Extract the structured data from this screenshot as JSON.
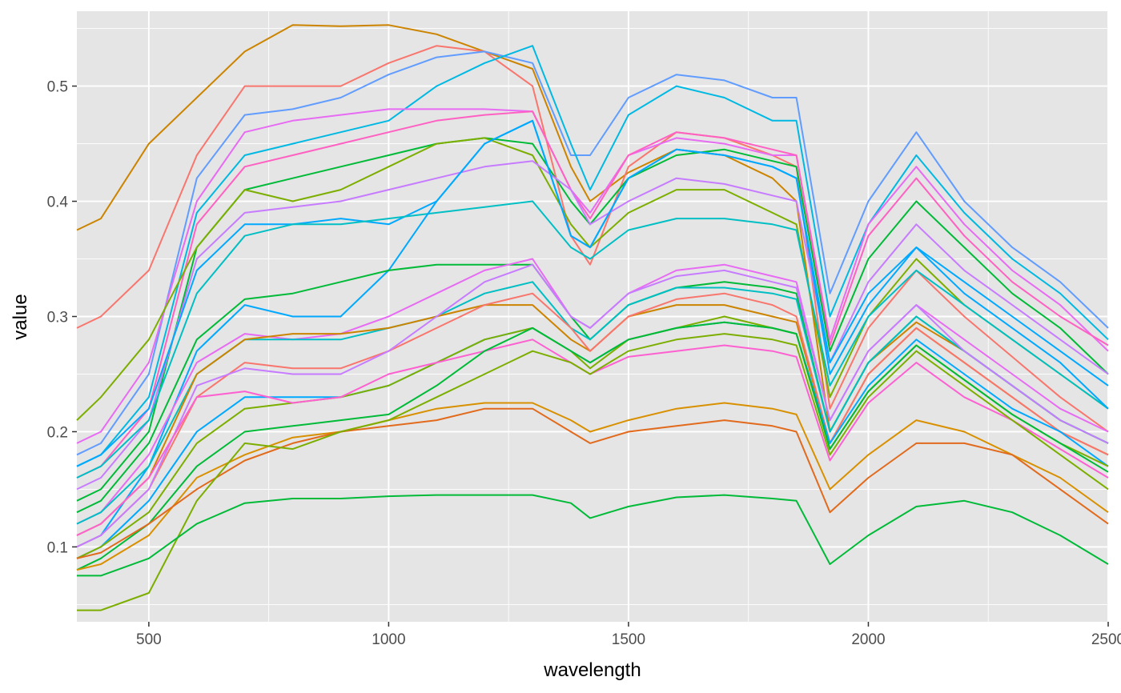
{
  "chart_data": {
    "type": "line",
    "title": "",
    "xlabel": "wavelength",
    "ylabel": "value",
    "xlim": [
      350,
      2500
    ],
    "ylim": [
      0.035,
      0.565
    ],
    "x_ticks": [
      500,
      1000,
      1500,
      2000,
      2500
    ],
    "x_tick_labels": [
      "500",
      "1000",
      "1500",
      "2000",
      "2500"
    ],
    "y_ticks": [
      0.1,
      0.2,
      0.3,
      0.4,
      0.5
    ],
    "y_tick_labels": [
      "0.1",
      "0.2",
      "0.3",
      "0.4",
      "0.5"
    ],
    "grid": true,
    "legend": "none",
    "panel_background": "#e5e5e5",
    "grid_color": "#ffffff",
    "x_key": [
      350,
      400,
      500,
      600,
      700,
      800,
      900,
      1000,
      1100,
      1200,
      1300,
      1380,
      1420,
      1500,
      1600,
      1700,
      1800,
      1850,
      1920,
      2000,
      2100,
      2200,
      2300,
      2400,
      2500
    ],
    "series": [
      {
        "color": "#cc8400",
        "values": [
          0.375,
          0.385,
          0.45,
          0.49,
          0.53,
          0.553,
          0.552,
          0.553,
          0.545,
          0.53,
          0.515,
          0.43,
          0.4,
          0.425,
          0.445,
          0.44,
          0.42,
          0.4,
          0.2,
          0.26,
          0.295,
          0.27,
          0.24,
          0.21,
          0.19
        ]
      },
      {
        "color": "#f8766d",
        "values": [
          0.29,
          0.3,
          0.34,
          0.44,
          0.5,
          0.5,
          0.5,
          0.52,
          0.535,
          0.53,
          0.5,
          0.37,
          0.345,
          0.43,
          0.46,
          0.455,
          0.44,
          0.43,
          0.22,
          0.29,
          0.34,
          0.3,
          0.265,
          0.23,
          0.2
        ]
      },
      {
        "color": "#619cff",
        "values": [
          0.18,
          0.19,
          0.25,
          0.42,
          0.475,
          0.48,
          0.49,
          0.51,
          0.525,
          0.53,
          0.52,
          0.44,
          0.44,
          0.49,
          0.51,
          0.505,
          0.49,
          0.49,
          0.32,
          0.4,
          0.46,
          0.4,
          0.36,
          0.33,
          0.29
        ]
      },
      {
        "color": "#00b9e3",
        "values": [
          0.17,
          0.18,
          0.23,
          0.39,
          0.44,
          0.45,
          0.46,
          0.47,
          0.5,
          0.52,
          0.535,
          0.45,
          0.41,
          0.475,
          0.5,
          0.49,
          0.47,
          0.47,
          0.3,
          0.38,
          0.44,
          0.39,
          0.35,
          0.32,
          0.28
        ]
      },
      {
        "color": "#e76bf3",
        "values": [
          0.19,
          0.2,
          0.26,
          0.4,
          0.46,
          0.47,
          0.475,
          0.48,
          0.48,
          0.48,
          0.478,
          0.41,
          0.39,
          0.44,
          0.455,
          0.45,
          0.44,
          0.44,
          0.28,
          0.38,
          0.43,
          0.38,
          0.34,
          0.31,
          0.27
        ]
      },
      {
        "color": "#ff61c3",
        "values": [
          0.16,
          0.17,
          0.22,
          0.38,
          0.43,
          0.44,
          0.45,
          0.46,
          0.47,
          0.475,
          0.478,
          0.41,
          0.385,
          0.44,
          0.46,
          0.455,
          0.445,
          0.44,
          0.275,
          0.37,
          0.42,
          0.37,
          0.33,
          0.3,
          0.275
        ]
      },
      {
        "color": "#00ba38",
        "values": [
          0.14,
          0.15,
          0.2,
          0.36,
          0.41,
          0.42,
          0.43,
          0.44,
          0.45,
          0.455,
          0.45,
          0.4,
          0.38,
          0.42,
          0.44,
          0.445,
          0.435,
          0.43,
          0.27,
          0.35,
          0.4,
          0.36,
          0.32,
          0.29,
          0.25
        ]
      },
      {
        "color": "#7cae00",
        "values": [
          0.21,
          0.23,
          0.28,
          0.36,
          0.41,
          0.4,
          0.41,
          0.43,
          0.45,
          0.455,
          0.44,
          0.38,
          0.36,
          0.39,
          0.41,
          0.41,
          0.39,
          0.38,
          0.23,
          0.3,
          0.35,
          0.31,
          0.28,
          0.25,
          0.22
        ]
      },
      {
        "color": "#c77cff",
        "values": [
          0.15,
          0.16,
          0.21,
          0.35,
          0.39,
          0.395,
          0.4,
          0.41,
          0.42,
          0.43,
          0.435,
          0.41,
          0.38,
          0.4,
          0.42,
          0.415,
          0.405,
          0.4,
          0.26,
          0.33,
          0.38,
          0.34,
          0.31,
          0.28,
          0.25
        ]
      },
      {
        "color": "#00a9ff",
        "values": [
          0.17,
          0.18,
          0.22,
          0.34,
          0.38,
          0.38,
          0.385,
          0.38,
          0.4,
          0.45,
          0.47,
          0.37,
          0.36,
          0.42,
          0.445,
          0.44,
          0.43,
          0.42,
          0.26,
          0.32,
          0.36,
          0.33,
          0.3,
          0.27,
          0.24
        ]
      },
      {
        "color": "#00bfc4",
        "values": [
          0.16,
          0.17,
          0.21,
          0.32,
          0.37,
          0.38,
          0.38,
          0.385,
          0.39,
          0.395,
          0.4,
          0.36,
          0.35,
          0.375,
          0.385,
          0.385,
          0.38,
          0.375,
          0.24,
          0.3,
          0.34,
          0.31,
          0.28,
          0.25,
          0.22
        ]
      },
      {
        "color": "#00a9ff",
        "values": [
          0.1,
          0.11,
          0.17,
          0.27,
          0.31,
          0.3,
          0.3,
          0.34,
          0.4,
          0.45,
          0.47,
          0.37,
          0.36,
          0.42,
          0.445,
          0.44,
          0.43,
          0.42,
          0.25,
          0.31,
          0.36,
          0.32,
          0.29,
          0.26,
          0.22
        ]
      },
      {
        "color": "#00ba38",
        "values": [
          0.13,
          0.14,
          0.19,
          0.28,
          0.315,
          0.32,
          0.33,
          0.34,
          0.345,
          0.345,
          0.345,
          0.3,
          0.28,
          0.31,
          0.325,
          0.33,
          0.325,
          0.32,
          0.2,
          0.26,
          0.3,
          0.27,
          0.24,
          0.21,
          0.19
        ]
      },
      {
        "color": "#e76bf3",
        "values": [
          0.12,
          0.13,
          0.18,
          0.26,
          0.285,
          0.28,
          0.285,
          0.3,
          0.32,
          0.34,
          0.35,
          0.3,
          0.29,
          0.32,
          0.34,
          0.345,
          0.335,
          0.33,
          0.21,
          0.27,
          0.31,
          0.28,
          0.25,
          0.22,
          0.2
        ]
      },
      {
        "color": "#00bfc4",
        "values": [
          0.12,
          0.13,
          0.17,
          0.25,
          0.28,
          0.28,
          0.28,
          0.29,
          0.3,
          0.32,
          0.33,
          0.29,
          0.28,
          0.31,
          0.325,
          0.325,
          0.32,
          0.315,
          0.2,
          0.26,
          0.3,
          0.27,
          0.24,
          0.21,
          0.19
        ]
      },
      {
        "color": "#cc8400",
        "values": [
          0.11,
          0.12,
          0.16,
          0.25,
          0.28,
          0.285,
          0.285,
          0.29,
          0.3,
          0.31,
          0.31,
          0.28,
          0.27,
          0.3,
          0.31,
          0.31,
          0.3,
          0.295,
          0.19,
          0.25,
          0.29,
          0.26,
          0.23,
          0.2,
          0.18
        ]
      },
      {
        "color": "#f8766d",
        "values": [
          0.1,
          0.11,
          0.15,
          0.23,
          0.26,
          0.255,
          0.255,
          0.27,
          0.29,
          0.31,
          0.32,
          0.29,
          0.27,
          0.3,
          0.315,
          0.32,
          0.31,
          0.3,
          0.19,
          0.25,
          0.29,
          0.26,
          0.23,
          0.2,
          0.18
        ]
      },
      {
        "color": "#c77cff",
        "values": [
          0.1,
          0.11,
          0.15,
          0.24,
          0.255,
          0.25,
          0.25,
          0.27,
          0.3,
          0.33,
          0.345,
          0.3,
          0.29,
          0.32,
          0.335,
          0.34,
          0.33,
          0.325,
          0.21,
          0.27,
          0.31,
          0.27,
          0.24,
          0.21,
          0.19
        ]
      },
      {
        "color": "#00a9ff",
        "values": [
          0.09,
          0.1,
          0.14,
          0.2,
          0.23,
          0.23,
          0.23,
          0.24,
          0.26,
          0.28,
          0.29,
          0.27,
          0.26,
          0.28,
          0.29,
          0.295,
          0.29,
          0.285,
          0.19,
          0.24,
          0.28,
          0.25,
          0.22,
          0.2,
          0.17
        ]
      },
      {
        "color": "#7cae00",
        "values": [
          0.09,
          0.1,
          0.13,
          0.19,
          0.22,
          0.225,
          0.23,
          0.24,
          0.26,
          0.28,
          0.29,
          0.27,
          0.255,
          0.28,
          0.29,
          0.3,
          0.29,
          0.285,
          0.185,
          0.235,
          0.275,
          0.245,
          0.215,
          0.19,
          0.17
        ]
      },
      {
        "color": "#fd61d1",
        "values": [
          0.11,
          0.12,
          0.16,
          0.23,
          0.235,
          0.225,
          0.23,
          0.25,
          0.26,
          0.27,
          0.28,
          0.26,
          0.25,
          0.265,
          0.27,
          0.275,
          0.27,
          0.265,
          0.175,
          0.225,
          0.26,
          0.23,
          0.21,
          0.185,
          0.16
        ]
      },
      {
        "color": "#00ba38",
        "values": [
          0.08,
          0.09,
          0.12,
          0.17,
          0.2,
          0.205,
          0.21,
          0.215,
          0.24,
          0.27,
          0.29,
          0.27,
          0.26,
          0.28,
          0.29,
          0.295,
          0.29,
          0.285,
          0.185,
          0.235,
          0.275,
          0.245,
          0.215,
          0.19,
          0.165
        ]
      },
      {
        "color": "#d89000",
        "values": [
          0.08,
          0.085,
          0.11,
          0.16,
          0.18,
          0.195,
          0.2,
          0.21,
          0.22,
          0.225,
          0.225,
          0.21,
          0.2,
          0.21,
          0.22,
          0.225,
          0.22,
          0.215,
          0.15,
          0.18,
          0.21,
          0.2,
          0.18,
          0.16,
          0.13
        ]
      },
      {
        "color": "#e16a1c",
        "values": [
          0.09,
          0.095,
          0.12,
          0.15,
          0.175,
          0.19,
          0.2,
          0.205,
          0.21,
          0.22,
          0.22,
          0.2,
          0.19,
          0.2,
          0.205,
          0.21,
          0.205,
          0.2,
          0.13,
          0.16,
          0.19,
          0.19,
          0.18,
          0.15,
          0.12
        ]
      },
      {
        "color": "#7cae00",
        "values": [
          0.045,
          0.045,
          0.06,
          0.14,
          0.19,
          0.185,
          0.2,
          0.21,
          0.23,
          0.25,
          0.27,
          0.26,
          0.25,
          0.27,
          0.28,
          0.285,
          0.28,
          0.275,
          0.18,
          0.23,
          0.27,
          0.24,
          0.21,
          0.18,
          0.15
        ]
      },
      {
        "color": "#00ba38",
        "values": [
          0.075,
          0.075,
          0.09,
          0.12,
          0.138,
          0.142,
          0.142,
          0.144,
          0.145,
          0.145,
          0.145,
          0.138,
          0.125,
          0.135,
          0.143,
          0.145,
          0.142,
          0.14,
          0.085,
          0.11,
          0.135,
          0.14,
          0.13,
          0.11,
          0.085
        ]
      }
    ]
  }
}
